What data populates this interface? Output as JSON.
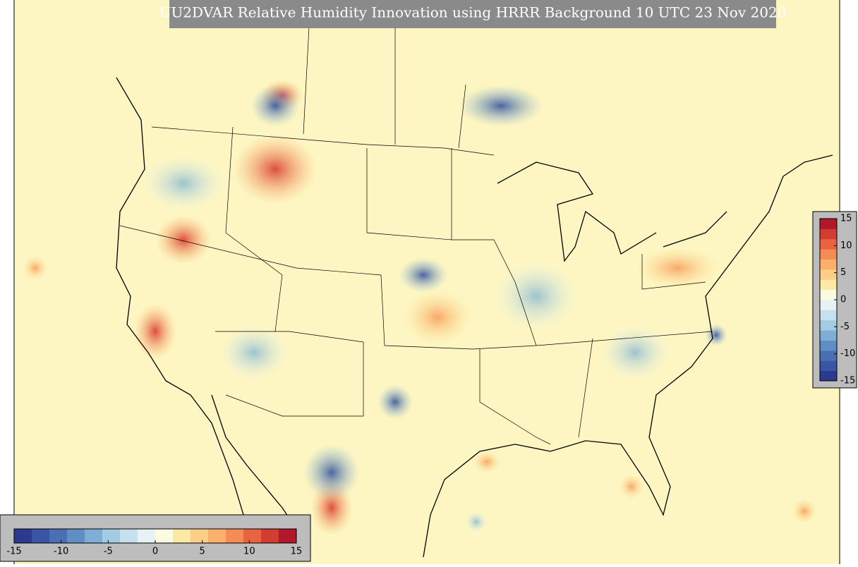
{
  "title": "UU2DVAR Relative Humidity Innovation using HRRR Background 10 UTC 23 Nov 2020",
  "horizontal_colorbar": {
    "range": [
      -15,
      15
    ],
    "ticks": [
      -15,
      -10,
      -5,
      0,
      5,
      10,
      15
    ],
    "colors": [
      "#2b3a8f",
      "#3a55a3",
      "#4a70b3",
      "#5f8ec4",
      "#7eaed5",
      "#a3cbe3",
      "#c6e1ee",
      "#e6f2f3",
      "#fbfbe0",
      "#fee8a5",
      "#fdcf86",
      "#fbb06b",
      "#f58c55",
      "#e8643f",
      "#d33c31",
      "#b2182b"
    ]
  },
  "vertical_colorbar": {
    "range": [
      -15,
      15
    ],
    "ticks": [
      15,
      10,
      5,
      0,
      -5,
      -10,
      -15
    ],
    "colors": [
      "#2b3a8f",
      "#3a55a3",
      "#4a70b3",
      "#5f8ec4",
      "#7eaed5",
      "#a3cbe3",
      "#c6e1ee",
      "#e6f2f3",
      "#fbfbe0",
      "#fee8a5",
      "#fdcf86",
      "#fbb06b",
      "#f58c55",
      "#e8643f",
      "#d33c31",
      "#b2182b"
    ]
  }
}
